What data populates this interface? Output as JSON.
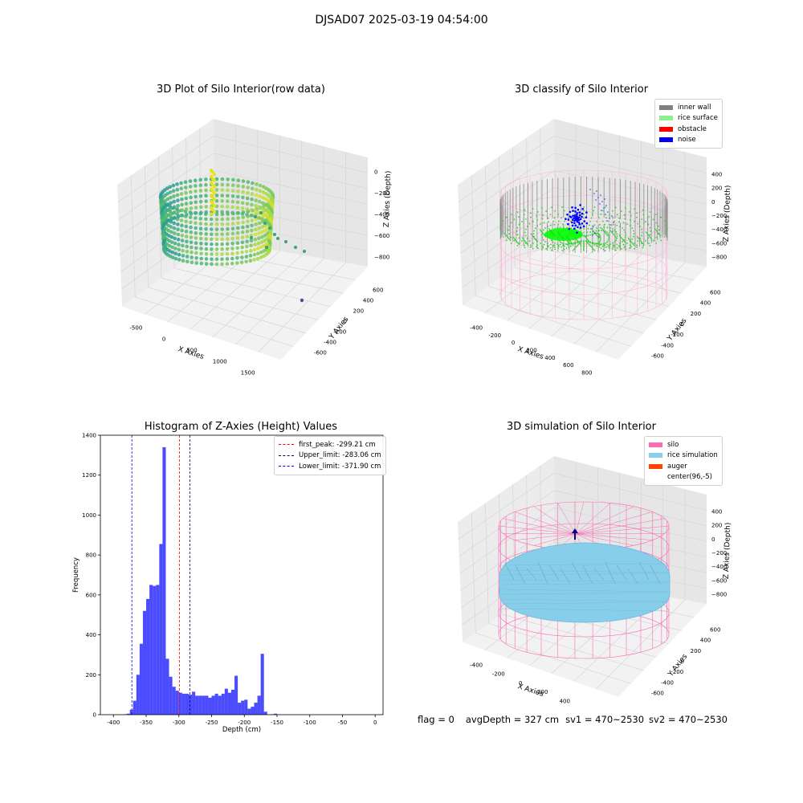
{
  "suptitle": "DJSAD07 2025-03-19 04:54:00",
  "footer": {
    "flag": "flag = 0",
    "avg_depth": "avgDepth = 327 cm",
    "sv1": "sv1 = 470~2530",
    "sv2": "sv2 = 470~2530"
  },
  "chart_data": [
    {
      "type": "scatter",
      "title": "3D Plot of Silo Interior(row data)",
      "xlabel": "X Axies",
      "ylabel": "Y Axies",
      "zlabel": "Z Axies (Depth)",
      "x_ticks": [
        "-500",
        "0",
        "500",
        "1000",
        "1500"
      ],
      "y_ticks": [
        "-600",
        "-400",
        "-200",
        "0",
        "200",
        "400",
        "600"
      ],
      "z_ticks": [
        "0",
        "−200",
        "−400",
        "−600",
        "−800"
      ]
    },
    {
      "type": "scatter",
      "title": "3D classify of Silo Interior",
      "xlabel": "X Axies",
      "ylabel": "Y Axies",
      "zlabel": "Z Axies (Depth)",
      "x_ticks": [
        "-400",
        "-200",
        "0",
        "200",
        "400",
        "600",
        "800"
      ],
      "y_ticks": [
        "-600",
        "-400",
        "-200",
        "0",
        "200",
        "400",
        "600"
      ],
      "z_ticks": [
        "400",
        "200",
        "0",
        "−200",
        "−400",
        "−600",
        "−800"
      ],
      "legend": [
        {
          "label": "inner wall",
          "color": "#808080"
        },
        {
          "label": "rice surface",
          "color": "#90ee90"
        },
        {
          "label": "obstacle",
          "color": "#ff0000"
        },
        {
          "label": "noise",
          "color": "#0000ff"
        }
      ]
    },
    {
      "type": "bar",
      "title": "Histogram of Z-Axies (Height) Values",
      "xlabel": "Depth (cm)",
      "ylabel": "Frequency",
      "xlim": [
        -420,
        12
      ],
      "ylim": [
        0,
        1400
      ],
      "x_ticks": [
        "-400",
        "-350",
        "-300",
        "-250",
        "-200",
        "-150",
        "-100",
        "-50",
        "0"
      ],
      "x_tick_values": [
        -400,
        -350,
        -300,
        -250,
        -200,
        -150,
        -100,
        -50,
        0
      ],
      "y_ticks": [
        "0",
        "200",
        "400",
        "600",
        "800",
        "1000",
        "1200",
        "1400"
      ],
      "y_tick_values": [
        0,
        200,
        400,
        600,
        800,
        1000,
        1200,
        1400
      ],
      "bin_start": -400,
      "bin_width": 5,
      "values": [
        0,
        0,
        0,
        2,
        5,
        25,
        70,
        200,
        355,
        520,
        580,
        650,
        645,
        650,
        855,
        1340,
        280,
        190,
        140,
        120,
        110,
        105,
        105,
        100,
        115,
        95,
        95,
        95,
        95,
        85,
        95,
        105,
        95,
        105,
        130,
        110,
        125,
        195,
        60,
        70,
        75,
        30,
        40,
        60,
        95,
        305,
        15,
        0,
        2,
        5,
        0,
        0,
        0,
        0,
        0,
        0,
        0,
        0,
        0,
        0
      ],
      "bar_color": "#0000ff",
      "lines": [
        {
          "label": "first_peak: -299.21 cm",
          "x": -299.21,
          "color": "#ff0000"
        },
        {
          "label": "Upper_limit: -283.06 cm",
          "x": -283.06,
          "color": "#00008b"
        },
        {
          "label": "Lower_limit: -371.90 cm",
          "x": -371.9,
          "color": "#00008b"
        }
      ]
    },
    {
      "type": "scatter",
      "title": "3D simulation of Silo Interior",
      "xlabel": "X Axies",
      "ylabel": "Y Axies",
      "zlabel": "Z Axies (Depth)",
      "x_ticks": [
        "-400",
        "-200",
        "0",
        "200",
        "400",
        "600"
      ],
      "y_ticks": [
        "-600",
        "-400",
        "-200",
        "0",
        "200",
        "400",
        "600"
      ],
      "z_ticks": [
        "400",
        "200",
        "0",
        "−200",
        "−400",
        "−600",
        "−800"
      ],
      "legend": [
        {
          "label": "silo",
          "color": "#ff69b4"
        },
        {
          "label": "rice simulation",
          "color": "#87ceeb"
        },
        {
          "label": "auger",
          "color": "#ff4500"
        },
        {
          "label": "center(96,-5)",
          "color": "#ffffff"
        }
      ]
    }
  ]
}
